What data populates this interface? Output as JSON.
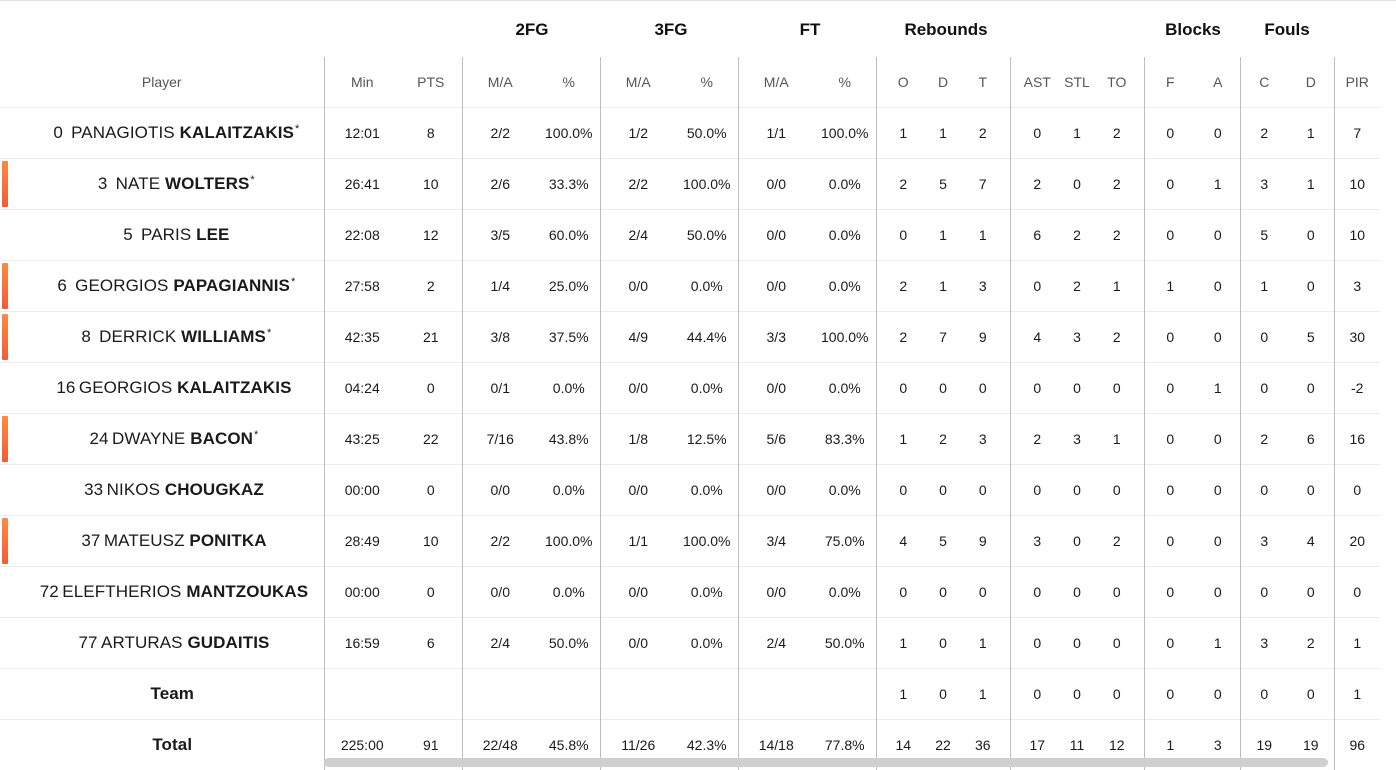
{
  "groups": [
    {
      "label": "2FG",
      "center": 532
    },
    {
      "label": "3FG",
      "center": 671
    },
    {
      "label": "FT",
      "center": 810
    },
    {
      "label": "Rebounds",
      "center": 946
    },
    {
      "label": "Blocks",
      "center": 1193
    },
    {
      "label": "Fouls",
      "center": 1287
    }
  ],
  "columns": [
    "Player",
    "Min",
    "PTS",
    "M/A",
    "%",
    "M/A",
    "%",
    "M/A",
    "%",
    "O",
    "D",
    "T",
    "AST",
    "STL",
    "TO",
    "F",
    "A",
    "C",
    "D",
    "PIR"
  ],
  "players": [
    {
      "num": "0",
      "first": "PANAGIOTIS",
      "last": "KALAITZAKIS",
      "starter": true,
      "marker": false,
      "stats": [
        "12:01",
        "8",
        "2/2",
        "100.0%",
        "1/2",
        "50.0%",
        "1/1",
        "100.0%",
        "1",
        "1",
        "2",
        "0",
        "1",
        "2",
        "0",
        "0",
        "2",
        "1",
        "7"
      ]
    },
    {
      "num": "3",
      "first": "NATE",
      "last": "WOLTERS",
      "starter": true,
      "marker": true,
      "stats": [
        "26:41",
        "10",
        "2/6",
        "33.3%",
        "2/2",
        "100.0%",
        "0/0",
        "0.0%",
        "2",
        "5",
        "7",
        "2",
        "0",
        "2",
        "0",
        "1",
        "3",
        "1",
        "10"
      ]
    },
    {
      "num": "5",
      "first": "PARIS",
      "last": "LEE",
      "starter": false,
      "marker": false,
      "stats": [
        "22:08",
        "12",
        "3/5",
        "60.0%",
        "2/4",
        "50.0%",
        "0/0",
        "0.0%",
        "0",
        "1",
        "1",
        "6",
        "2",
        "2",
        "0",
        "0",
        "5",
        "0",
        "10"
      ]
    },
    {
      "num": "6",
      "first": "GEORGIOS",
      "last": "PAPAGIANNIS",
      "starter": true,
      "marker": true,
      "stats": [
        "27:58",
        "2",
        "1/4",
        "25.0%",
        "0/0",
        "0.0%",
        "0/0",
        "0.0%",
        "2",
        "1",
        "3",
        "0",
        "2",
        "1",
        "1",
        "0",
        "1",
        "0",
        "3"
      ]
    },
    {
      "num": "8",
      "first": "DERRICK",
      "last": "WILLIAMS",
      "starter": true,
      "marker": true,
      "stats": [
        "42:35",
        "21",
        "3/8",
        "37.5%",
        "4/9",
        "44.4%",
        "3/3",
        "100.0%",
        "2",
        "7",
        "9",
        "4",
        "3",
        "2",
        "0",
        "0",
        "0",
        "5",
        "30"
      ]
    },
    {
      "num": "16",
      "first": "GEORGIOS",
      "last": "KALAITZAKIS",
      "starter": false,
      "marker": false,
      "stats": [
        "04:24",
        "0",
        "0/1",
        "0.0%",
        "0/0",
        "0.0%",
        "0/0",
        "0.0%",
        "0",
        "0",
        "0",
        "0",
        "0",
        "0",
        "0",
        "1",
        "0",
        "0",
        "-2"
      ]
    },
    {
      "num": "24",
      "first": "DWAYNE",
      "last": "BACON",
      "starter": true,
      "marker": true,
      "stats": [
        "43:25",
        "22",
        "7/16",
        "43.8%",
        "1/8",
        "12.5%",
        "5/6",
        "83.3%",
        "1",
        "2",
        "3",
        "2",
        "3",
        "1",
        "0",
        "0",
        "2",
        "6",
        "16"
      ]
    },
    {
      "num": "33",
      "first": "NIKOS",
      "last": "CHOUGKAZ",
      "starter": false,
      "marker": false,
      "stats": [
        "00:00",
        "0",
        "0/0",
        "0.0%",
        "0/0",
        "0.0%",
        "0/0",
        "0.0%",
        "0",
        "0",
        "0",
        "0",
        "0",
        "0",
        "0",
        "0",
        "0",
        "0",
        "0"
      ]
    },
    {
      "num": "37",
      "first": "MATEUSZ",
      "last": "PONITKA",
      "starter": false,
      "marker": true,
      "stats": [
        "28:49",
        "10",
        "2/2",
        "100.0%",
        "1/1",
        "100.0%",
        "3/4",
        "75.0%",
        "4",
        "5",
        "9",
        "3",
        "0",
        "2",
        "0",
        "0",
        "3",
        "4",
        "20"
      ]
    },
    {
      "num": "72",
      "first": "ELEFTHERIOS",
      "last": "MANTZOUKAS",
      "starter": false,
      "marker": false,
      "stats": [
        "00:00",
        "0",
        "0/0",
        "0.0%",
        "0/0",
        "0.0%",
        "0/0",
        "0.0%",
        "0",
        "0",
        "0",
        "0",
        "0",
        "0",
        "0",
        "0",
        "0",
        "0",
        "0"
      ]
    },
    {
      "num": "77",
      "first": "ARTURAS",
      "last": "GUDAITIS",
      "starter": false,
      "marker": false,
      "stats": [
        "16:59",
        "6",
        "2/4",
        "50.0%",
        "0/0",
        "0.0%",
        "2/4",
        "50.0%",
        "1",
        "0",
        "1",
        "0",
        "0",
        "0",
        "0",
        "1",
        "3",
        "2",
        "1"
      ]
    }
  ],
  "team": {
    "label": "Team",
    "stats": [
      "",
      "",
      "",
      "",
      "",
      "",
      "",
      "",
      "1",
      "0",
      "1",
      "0",
      "0",
      "0",
      "0",
      "0",
      "0",
      "0",
      "1"
    ]
  },
  "total": {
    "label": "Total",
    "stats": [
      "225:00",
      "91",
      "22/48",
      "45.8%",
      "11/26",
      "42.3%",
      "14/18",
      "77.8%",
      "14",
      "22",
      "36",
      "17",
      "11",
      "12",
      "1",
      "3",
      "19",
      "19",
      "96"
    ]
  },
  "star_symbol": "*"
}
